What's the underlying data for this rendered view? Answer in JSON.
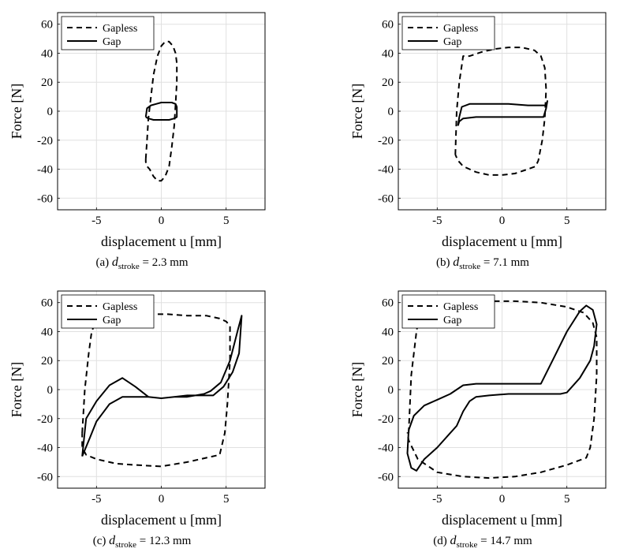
{
  "chart_data": [
    {
      "type": "line",
      "caption": {
        "tag": "(a)",
        "symbol": "d",
        "sub": "stroke",
        "rest": "= 2.3 mm"
      },
      "xlabel": "displacement u [mm]",
      "ylabel": "Force [N]",
      "xlim": [
        -8,
        8
      ],
      "ylim": [
        -68,
        68
      ],
      "xticks": [
        -5,
        0,
        5
      ],
      "yticks": [
        -60,
        -40,
        -20,
        0,
        20,
        40,
        60
      ],
      "grid": true,
      "legend": "top-left",
      "series": [
        {
          "name": "Gapless",
          "style": "dashed",
          "x": [
            -1.2,
            -1.1,
            -1.0,
            -0.8,
            -0.6,
            -0.3,
            0.0,
            0.3,
            0.6,
            0.9,
            1.1,
            1.2,
            1.2,
            1.1,
            1.0,
            0.8,
            0.6,
            0.3,
            0.0,
            -0.3,
            -0.6,
            -0.9,
            -1.1,
            -1.2,
            -1.2
          ],
          "y": [
            -33,
            -20,
            -5,
            10,
            25,
            38,
            45,
            48,
            48,
            45,
            40,
            33,
            20,
            5,
            -10,
            -25,
            -38,
            -45,
            -48,
            -48,
            -45,
            -40,
            -38,
            -35,
            -33
          ]
        },
        {
          "name": "Gap",
          "style": "solid",
          "x": [
            -1.2,
            -1.1,
            -0.8,
            -0.4,
            0.0,
            0.4,
            0.8,
            1.1,
            1.2,
            1.2,
            1.0,
            0.6,
            0.2,
            -0.2,
            -0.6,
            -1.0,
            -1.2,
            -1.2
          ],
          "y": [
            -4,
            2,
            4,
            5,
            6,
            6,
            6,
            5,
            3,
            -4,
            -5,
            -6,
            -6,
            -6,
            -6,
            -5,
            -4,
            -4
          ]
        }
      ]
    },
    {
      "type": "line",
      "caption": {
        "tag": "(b)",
        "symbol": "d",
        "sub": "stroke",
        "rest": "= 7.1 mm"
      },
      "xlabel": "displacement u [mm]",
      "ylabel": "Force [N]",
      "xlim": [
        -8,
        8
      ],
      "ylim": [
        -68,
        68
      ],
      "xticks": [
        -5,
        0,
        5
      ],
      "yticks": [
        -60,
        -40,
        -20,
        0,
        20,
        40,
        60
      ],
      "grid": true,
      "legend": "top-left",
      "series": [
        {
          "name": "Gapless",
          "style": "dashed",
          "x": [
            -3.6,
            -3.5,
            -3.3,
            -3.0,
            -2.5,
            -1.5,
            -0.5,
            0.5,
            1.5,
            2.5,
            3.0,
            3.3,
            3.4,
            3.3,
            3.1,
            2.8,
            2.6,
            2.0,
            1.0,
            0.0,
            -1.0,
            -2.0,
            -3.0,
            -3.4,
            -3.6,
            -3.6
          ],
          "y": [
            -30,
            0,
            20,
            38,
            38,
            41,
            43,
            44,
            44,
            42,
            38,
            30,
            15,
            -5,
            -20,
            -34,
            -38,
            -40,
            -43,
            -44,
            -44,
            -42,
            -38,
            -34,
            -30,
            -30
          ]
        },
        {
          "name": "Gap",
          "style": "solid",
          "x": [
            -3.4,
            -3.3,
            -3.1,
            -2.5,
            -1.0,
            0.5,
            2.0,
            3.0,
            3.4,
            3.5,
            3.4,
            3.2,
            2.5,
            1.0,
            -0.5,
            -2.0,
            -3.0,
            -3.3,
            -3.4
          ],
          "y": [
            -10,
            -4,
            3,
            5,
            5,
            5,
            4,
            4,
            4,
            7,
            2,
            -4,
            -4,
            -4,
            -4,
            -4,
            -5,
            -7,
            -10
          ]
        }
      ]
    },
    {
      "type": "line",
      "caption": {
        "tag": "(c)",
        "symbol": "d",
        "sub": "stroke",
        "rest": "= 12.3 mm"
      },
      "xlabel": "displacement u [mm]",
      "ylabel": "Force [N]",
      "xlim": [
        -8,
        8
      ],
      "ylim": [
        -68,
        68
      ],
      "xticks": [
        -5,
        0,
        5
      ],
      "yticks": [
        -60,
        -40,
        -20,
        0,
        20,
        40,
        60
      ],
      "grid": true,
      "legend": "top-left",
      "series": [
        {
          "name": "Gapless",
          "style": "dashed",
          "x": [
            -6.1,
            -5.9,
            -5.6,
            -5.4,
            -5.0,
            -3.0,
            -1.0,
            0.5,
            2.0,
            3.5,
            4.5,
            5.0,
            5.3,
            5.3,
            5.1,
            4.9,
            4.5,
            3.5,
            2.0,
            0.0,
            -2.0,
            -3.5,
            -5.0,
            -5.8,
            -6.1,
            -6.1
          ],
          "y": [
            -30,
            0,
            25,
            38,
            51,
            52,
            52,
            52,
            51,
            51,
            49,
            47,
            44,
            20,
            -10,
            -30,
            -45,
            -47,
            -50,
            -53,
            -52,
            -51,
            -48,
            -45,
            -40,
            -30
          ]
        },
        {
          "name": "Gap",
          "style": "solid",
          "x": [
            -6.1,
            -5.5,
            -5.0,
            -4.0,
            -3.0,
            -2.0,
            -1.0,
            0.0,
            1.0,
            2.0,
            3.0,
            4.0,
            4.8,
            5.5,
            6.0,
            6.2,
            5.9,
            5.3,
            4.6,
            3.8,
            3.3,
            2.0,
            1.0,
            0.0,
            -1.0,
            -2.0,
            -3.0,
            -4.0,
            -5.0,
            -5.8,
            -6.1
          ],
          "y": [
            -46,
            -33,
            -22,
            -10,
            -5,
            -5,
            -5,
            -6,
            -5,
            -4,
            -4,
            -4,
            2,
            12,
            25,
            51,
            41,
            20,
            5,
            -1,
            -3,
            -5,
            -5,
            -6,
            -5,
            2,
            8,
            3,
            -8,
            -20,
            -46
          ]
        }
      ]
    },
    {
      "type": "line",
      "caption": {
        "tag": "(d)",
        "symbol": "d",
        "sub": "stroke",
        "rest": "= 14.7 mm"
      },
      "xlabel": "displacement u [mm]",
      "ylabel": "Force [N]",
      "xlim": [
        -8,
        8
      ],
      "ylim": [
        -68,
        68
      ],
      "xticks": [
        -5,
        0,
        5
      ],
      "yticks": [
        -60,
        -40,
        -20,
        0,
        20,
        40,
        60
      ],
      "grid": true,
      "legend": "top-left",
      "series": [
        {
          "name": "Gapless",
          "style": "dashed",
          "x": [
            -7.2,
            -7.0,
            -6.6,
            -6.3,
            -5.0,
            -3.0,
            -1.0,
            1.0,
            3.0,
            5.0,
            6.3,
            7.0,
            7.3,
            7.3,
            7.1,
            6.8,
            6.5,
            5.0,
            3.0,
            1.0,
            -1.0,
            -3.0,
            -5.0,
            -6.5,
            -7.2,
            -7.3,
            -7.2
          ],
          "y": [
            -30,
            10,
            40,
            55,
            59,
            60,
            61,
            61,
            60,
            57,
            53,
            46,
            36,
            10,
            -20,
            -40,
            -47,
            -52,
            -57,
            -60,
            -61,
            -60,
            -57,
            -48,
            -35,
            -30,
            -30
          ]
        },
        {
          "name": "Gap",
          "style": "solid",
          "x": [
            -7.2,
            -6.8,
            -6.0,
            -5.0,
            -4.0,
            -3.0,
            -2.0,
            -1.5,
            -0.5,
            0.5,
            1.5,
            3.0,
            4.0,
            5.0,
            6.0,
            6.5,
            7.0,
            7.3,
            7.1,
            6.8,
            6.0,
            5.0,
            4.5,
            4.0,
            3.5,
            3.0,
            2.0,
            0.5,
            -1.0,
            -2.0,
            -2.5,
            -3.0,
            -3.5,
            -4.0,
            -5.0,
            -6.0,
            -6.6,
            -7.0,
            -7.3,
            -7.2
          ],
          "y": [
            -28,
            -18,
            -11,
            -7,
            -3,
            3,
            4,
            4,
            4,
            4,
            4,
            4,
            22,
            40,
            54,
            58,
            55,
            45,
            30,
            20,
            8,
            -2,
            -3,
            -3,
            -3,
            -3,
            -3,
            -3,
            -4,
            -5,
            -8,
            -15,
            -25,
            -30,
            -40,
            -48,
            -56,
            -54,
            -44,
            -28
          ]
        }
      ]
    }
  ]
}
